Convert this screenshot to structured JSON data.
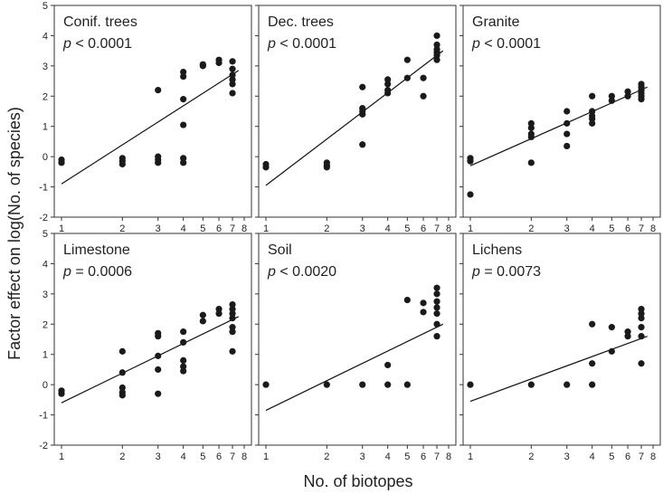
{
  "figure": {
    "ylabel": "Factor effect on log(No. of species)",
    "xlabel": "No. of biotopes"
  },
  "chart_data": {
    "type": "scatter",
    "x_scale": "log",
    "x_ticks": [
      1,
      2,
      3,
      4,
      5,
      6,
      7,
      8
    ],
    "x_tick_labels": [
      "1",
      "2",
      "3",
      "4",
      "5",
      "6",
      "7",
      "8"
    ],
    "xlim": [
      1,
      8
    ],
    "y_ticks": [
      -2,
      -1,
      0,
      1,
      2,
      3,
      4,
      5
    ],
    "y_tick_labels": [
      "-2",
      "-1",
      "0",
      "1",
      "2",
      "3",
      "4",
      "5"
    ],
    "ylim": [
      -2,
      5
    ],
    "grid": false,
    "panels": [
      {
        "title": "Conif. trees",
        "p_symbol": "p",
        "p_rest": " < 0.0001",
        "points": [
          [
            1,
            -0.1
          ],
          [
            1,
            -0.2
          ],
          [
            2,
            -0.05
          ],
          [
            2,
            -0.15
          ],
          [
            2,
            -0.25
          ],
          [
            3,
            2.2
          ],
          [
            3,
            0.0
          ],
          [
            3,
            -0.1
          ],
          [
            3,
            -0.2
          ],
          [
            4,
            2.8
          ],
          [
            4,
            2.65
          ],
          [
            4,
            1.9
          ],
          [
            4,
            1.05
          ],
          [
            4,
            -0.05
          ],
          [
            4,
            -0.2
          ],
          [
            5,
            3.0
          ],
          [
            5,
            3.05
          ],
          [
            6,
            3.1
          ],
          [
            6,
            3.2
          ],
          [
            7,
            3.15
          ],
          [
            7,
            2.9
          ],
          [
            7,
            2.7
          ],
          [
            7,
            2.55
          ],
          [
            7,
            2.4
          ],
          [
            7,
            2.1
          ]
        ],
        "fit": [
          [
            1,
            -0.9
          ],
          [
            7.5,
            2.85
          ]
        ]
      },
      {
        "title": "Dec. trees",
        "p_symbol": "p",
        "p_rest": " < 0.0001",
        "points": [
          [
            1,
            -0.25
          ],
          [
            1,
            -0.35
          ],
          [
            2,
            -0.2
          ],
          [
            2,
            -0.3
          ],
          [
            2,
            -0.35
          ],
          [
            3,
            2.3
          ],
          [
            3,
            1.6
          ],
          [
            3,
            1.5
          ],
          [
            3,
            1.4
          ],
          [
            3,
            0.4
          ],
          [
            4,
            2.55
          ],
          [
            4,
            2.4
          ],
          [
            4,
            2.2
          ],
          [
            4,
            2.1
          ],
          [
            5,
            3.2
          ],
          [
            5,
            2.6
          ],
          [
            6,
            2.6
          ],
          [
            6,
            2.0
          ],
          [
            7,
            4.0
          ],
          [
            7,
            3.7
          ],
          [
            7,
            3.55
          ],
          [
            7,
            3.45
          ],
          [
            7,
            3.35
          ],
          [
            7,
            3.2
          ]
        ],
        "fit": [
          [
            1,
            -0.95
          ],
          [
            7.5,
            3.5
          ]
        ]
      },
      {
        "title": "Granite",
        "p_symbol": "p",
        "p_rest": " < 0.0001",
        "points": [
          [
            1,
            -0.05
          ],
          [
            1,
            -0.15
          ],
          [
            1,
            -1.25
          ],
          [
            2,
            1.1
          ],
          [
            2,
            0.95
          ],
          [
            2,
            0.75
          ],
          [
            2,
            0.65
          ],
          [
            2,
            -0.2
          ],
          [
            3,
            1.5
          ],
          [
            3,
            1.1
          ],
          [
            3,
            0.75
          ],
          [
            3,
            0.35
          ],
          [
            4,
            2.0
          ],
          [
            4,
            1.5
          ],
          [
            4,
            1.35
          ],
          [
            4,
            1.25
          ],
          [
            4,
            1.1
          ],
          [
            5,
            2.0
          ],
          [
            5,
            1.85
          ],
          [
            6,
            2.15
          ],
          [
            6,
            2.0
          ],
          [
            7,
            2.4
          ],
          [
            7,
            2.3
          ],
          [
            7,
            2.2
          ],
          [
            7,
            2.1
          ],
          [
            7,
            2.0
          ],
          [
            7,
            1.9
          ]
        ],
        "fit": [
          [
            1,
            -0.3
          ],
          [
            7.5,
            2.3
          ]
        ]
      },
      {
        "title": "Limestone",
        "p_symbol": "p",
        "p_rest": " = 0.0006",
        "points": [
          [
            1,
            -0.2
          ],
          [
            1,
            -0.3
          ],
          [
            2,
            1.1
          ],
          [
            2,
            0.4
          ],
          [
            2,
            -0.1
          ],
          [
            2,
            -0.25
          ],
          [
            2,
            -0.35
          ],
          [
            3,
            1.7
          ],
          [
            3,
            1.6
          ],
          [
            3,
            0.95
          ],
          [
            3,
            0.5
          ],
          [
            3,
            -0.3
          ],
          [
            4,
            1.75
          ],
          [
            4,
            1.4
          ],
          [
            4,
            0.8
          ],
          [
            4,
            0.6
          ],
          [
            4,
            0.45
          ],
          [
            5,
            2.3
          ],
          [
            5,
            2.1
          ],
          [
            6,
            2.5
          ],
          [
            6,
            2.35
          ],
          [
            7,
            2.65
          ],
          [
            7,
            2.5
          ],
          [
            7,
            2.35
          ],
          [
            7,
            2.2
          ],
          [
            7,
            1.9
          ],
          [
            7,
            1.75
          ],
          [
            7,
            1.1
          ]
        ],
        "fit": [
          [
            1,
            -0.6
          ],
          [
            7.5,
            2.25
          ]
        ]
      },
      {
        "title": "Soil",
        "p_symbol": "p",
        "p_rest": " < 0.0020",
        "points": [
          [
            1,
            0.0
          ],
          [
            2,
            0.0
          ],
          [
            3,
            0.0
          ],
          [
            4,
            0.65
          ],
          [
            4,
            0.0
          ],
          [
            5,
            2.8
          ],
          [
            5,
            0.0
          ],
          [
            6,
            2.7
          ],
          [
            6,
            2.4
          ],
          [
            7,
            3.2
          ],
          [
            7,
            3.0
          ],
          [
            7,
            2.75
          ],
          [
            7,
            2.55
          ],
          [
            7,
            2.35
          ],
          [
            7,
            2.0
          ],
          [
            7,
            1.6
          ]
        ],
        "fit": [
          [
            1,
            -0.85
          ],
          [
            7.5,
            2.0
          ]
        ]
      },
      {
        "title": "Lichens",
        "p_symbol": "p",
        "p_rest": " = 0.0073",
        "points": [
          [
            1,
            0.0
          ],
          [
            2,
            0.0
          ],
          [
            3,
            0.0
          ],
          [
            4,
            2.0
          ],
          [
            4,
            0.7
          ],
          [
            4,
            0.0
          ],
          [
            5,
            1.9
          ],
          [
            5,
            1.1
          ],
          [
            6,
            1.75
          ],
          [
            6,
            1.6
          ],
          [
            7,
            2.5
          ],
          [
            7,
            2.35
          ],
          [
            7,
            2.2
          ],
          [
            7,
            1.9
          ],
          [
            7,
            1.6
          ],
          [
            7,
            0.7
          ]
        ],
        "fit": [
          [
            1,
            -0.55
          ],
          [
            7.5,
            1.6
          ]
        ]
      }
    ]
  }
}
